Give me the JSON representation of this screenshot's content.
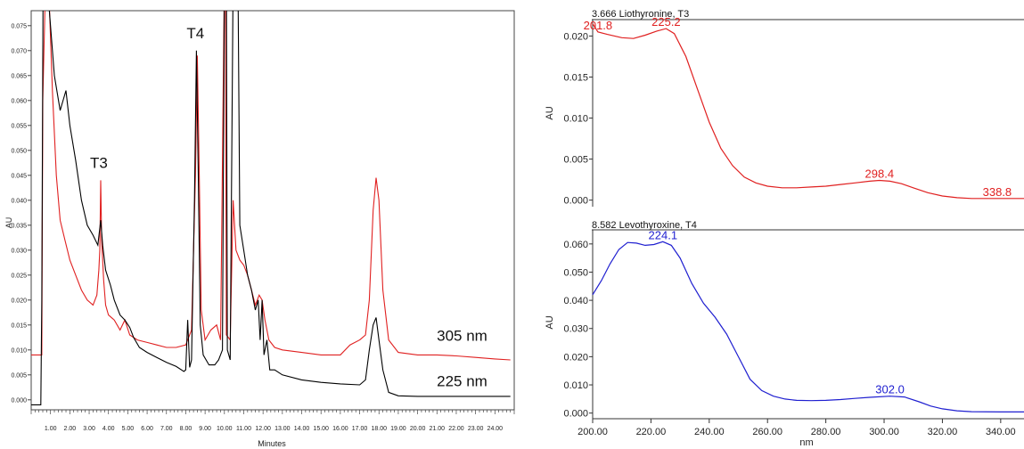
{
  "chart_data": [
    {
      "type": "line",
      "id": "chromatogram",
      "xlabel": "Minutes",
      "ylabel": "AU",
      "xlim": [
        0,
        25
      ],
      "ylim": [
        -0.002,
        0.078
      ],
      "x_ticks": [
        1.0,
        2.0,
        3.0,
        4.0,
        5.0,
        6.0,
        7.0,
        8.0,
        9.0,
        10.0,
        11.0,
        12.0,
        13.0,
        14.0,
        15.0,
        16.0,
        17.0,
        18.0,
        19.0,
        20.0,
        21.0,
        22.0,
        23.0,
        24.0
      ],
      "x_tick_labels": [
        "1.00",
        "2.00",
        "3.00",
        "4.00",
        "5.00",
        "6.00",
        "7.00",
        "8.00",
        "9.00",
        "10.00",
        "11.00",
        "12.00",
        "13.00",
        "14.00",
        "15.00",
        "16.00",
        "17.00",
        "18.00",
        "19.00",
        "20.00",
        "21.00",
        "22.00",
        "23.00",
        "24.00"
      ],
      "y_ticks": [
        0.0,
        0.005,
        0.01,
        0.015,
        0.02,
        0.025,
        0.03,
        0.035,
        0.04,
        0.045,
        0.05,
        0.055,
        0.06,
        0.065,
        0.07,
        0.075
      ],
      "y_tick_labels": [
        "0.000",
        "0.005",
        "0.010",
        "0.015",
        "0.020",
        "0.025",
        "0.030",
        "0.035",
        "0.040",
        "0.045",
        "0.050",
        "0.055",
        "0.060",
        "0.065",
        "0.070",
        "0.075"
      ],
      "series": [
        {
          "name": "225 nm",
          "color": "#000000",
          "points": [
            [
              0.0,
              -0.001
            ],
            [
              0.5,
              -0.001
            ],
            [
              0.55,
              0.02
            ],
            [
              0.62,
              0.085
            ],
            [
              0.85,
              0.085
            ],
            [
              0.9,
              0.08
            ],
            [
              1.2,
              0.065
            ],
            [
              1.5,
              0.058
            ],
            [
              1.8,
              0.062
            ],
            [
              2.0,
              0.055
            ],
            [
              2.3,
              0.048
            ],
            [
              2.6,
              0.04
            ],
            [
              2.9,
              0.035
            ],
            [
              3.2,
              0.033
            ],
            [
              3.45,
              0.031
            ],
            [
              3.6,
              0.036
            ],
            [
              3.7,
              0.031
            ],
            [
              3.85,
              0.026
            ],
            [
              4.1,
              0.023
            ],
            [
              4.3,
              0.02
            ],
            [
              4.6,
              0.017
            ],
            [
              4.85,
              0.016
            ],
            [
              5.1,
              0.0145
            ],
            [
              5.3,
              0.0125
            ],
            [
              5.6,
              0.0105
            ],
            [
              6.0,
              0.0095
            ],
            [
              6.5,
              0.0085
            ],
            [
              7.0,
              0.0075
            ],
            [
              7.5,
              0.0067
            ],
            [
              7.9,
              0.0057
            ],
            [
              8.0,
              0.006
            ],
            [
              8.1,
              0.016
            ],
            [
              8.2,
              0.0065
            ],
            [
              8.3,
              0.008
            ],
            [
              8.45,
              0.04
            ],
            [
              8.55,
              0.07
            ],
            [
              8.65,
              0.045
            ],
            [
              8.75,
              0.015
            ],
            [
              8.9,
              0.009
            ],
            [
              9.2,
              0.007
            ],
            [
              9.5,
              0.007
            ],
            [
              9.7,
              0.008
            ],
            [
              9.9,
              0.01
            ],
            [
              10.0,
              0.085
            ],
            [
              10.1,
              0.085
            ],
            [
              10.15,
              0.01
            ],
            [
              10.3,
              0.008
            ],
            [
              10.45,
              0.085
            ],
            [
              10.7,
              0.085
            ],
            [
              10.8,
              0.035
            ],
            [
              11.0,
              0.03
            ],
            [
              11.2,
              0.025
            ],
            [
              11.4,
              0.022
            ],
            [
              11.6,
              0.018
            ],
            [
              11.75,
              0.02
            ],
            [
              11.85,
              0.012
            ],
            [
              11.95,
              0.02
            ],
            [
              12.05,
              0.009
            ],
            [
              12.2,
              0.012
            ],
            [
              12.35,
              0.006
            ],
            [
              12.6,
              0.006
            ],
            [
              13.0,
              0.005
            ],
            [
              14.0,
              0.004
            ],
            [
              15.0,
              0.0035
            ],
            [
              16.0,
              0.0032
            ],
            [
              17.0,
              0.003
            ],
            [
              17.3,
              0.004
            ],
            [
              17.5,
              0.01
            ],
            [
              17.7,
              0.015
            ],
            [
              17.85,
              0.0165
            ],
            [
              18.0,
              0.012
            ],
            [
              18.2,
              0.006
            ],
            [
              18.5,
              0.0015
            ],
            [
              19.0,
              0.0008
            ],
            [
              20.0,
              0.0007
            ],
            [
              21.0,
              0.0007
            ],
            [
              22.0,
              0.0007
            ],
            [
              23.0,
              0.0007
            ],
            [
              24.0,
              0.0007
            ],
            [
              24.8,
              0.0007
            ]
          ]
        },
        {
          "name": "305 nm",
          "color": "#e02020",
          "points": [
            [
              0.0,
              0.009
            ],
            [
              0.55,
              0.009
            ],
            [
              0.6,
              0.06
            ],
            [
              0.75,
              0.085
            ],
            [
              0.95,
              0.078
            ],
            [
              1.1,
              0.062
            ],
            [
              1.3,
              0.045
            ],
            [
              1.5,
              0.036
            ],
            [
              1.75,
              0.032
            ],
            [
              2.0,
              0.028
            ],
            [
              2.3,
              0.025
            ],
            [
              2.6,
              0.022
            ],
            [
              2.9,
              0.02
            ],
            [
              3.2,
              0.019
            ],
            [
              3.4,
              0.021
            ],
            [
              3.5,
              0.026
            ],
            [
              3.55,
              0.03
            ],
            [
              3.6,
              0.044
            ],
            [
              3.65,
              0.032
            ],
            [
              3.75,
              0.024
            ],
            [
              3.85,
              0.019
            ],
            [
              4.0,
              0.017
            ],
            [
              4.3,
              0.016
            ],
            [
              4.6,
              0.014
            ],
            [
              4.85,
              0.016
            ],
            [
              5.1,
              0.013
            ],
            [
              5.5,
              0.012
            ],
            [
              6.0,
              0.0115
            ],
            [
              6.5,
              0.011
            ],
            [
              7.0,
              0.0105
            ],
            [
              7.5,
              0.0105
            ],
            [
              8.0,
              0.011
            ],
            [
              8.3,
              0.014
            ],
            [
              8.5,
              0.045
            ],
            [
              8.6,
              0.069
            ],
            [
              8.7,
              0.045
            ],
            [
              8.8,
              0.018
            ],
            [
              9.0,
              0.012
            ],
            [
              9.3,
              0.014
            ],
            [
              9.6,
              0.015
            ],
            [
              9.8,
              0.012
            ],
            [
              10.0,
              0.085
            ],
            [
              10.05,
              0.085
            ],
            [
              10.1,
              0.013
            ],
            [
              10.3,
              0.012
            ],
            [
              10.45,
              0.04
            ],
            [
              10.6,
              0.03
            ],
            [
              10.8,
              0.028
            ],
            [
              11.0,
              0.027
            ],
            [
              11.2,
              0.025
            ],
            [
              11.4,
              0.022
            ],
            [
              11.6,
              0.019
            ],
            [
              11.8,
              0.021
            ],
            [
              11.95,
              0.02
            ],
            [
              12.1,
              0.016
            ],
            [
              12.3,
              0.012
            ],
            [
              12.6,
              0.0105
            ],
            [
              13.0,
              0.01
            ],
            [
              14.0,
              0.0095
            ],
            [
              15.0,
              0.009
            ],
            [
              16.0,
              0.009
            ],
            [
              16.5,
              0.011
            ],
            [
              17.0,
              0.012
            ],
            [
              17.3,
              0.013
            ],
            [
              17.5,
              0.02
            ],
            [
              17.7,
              0.038
            ],
            [
              17.85,
              0.0445
            ],
            [
              18.0,
              0.04
            ],
            [
              18.2,
              0.022
            ],
            [
              18.5,
              0.012
            ],
            [
              19.0,
              0.0095
            ],
            [
              20.0,
              0.009
            ],
            [
              21.0,
              0.009
            ],
            [
              22.0,
              0.0088
            ],
            [
              23.0,
              0.0085
            ],
            [
              24.0,
              0.0082
            ],
            [
              24.8,
              0.008
            ]
          ]
        }
      ],
      "annotations": [
        {
          "text": "T3",
          "x": 3.5,
          "y": 0.0465
        },
        {
          "text": "T4",
          "x": 8.5,
          "y": 0.0725
        },
        {
          "text": "305 nm",
          "x": 22.3,
          "y": 0.0118
        },
        {
          "text": "225 nm",
          "x": 22.3,
          "y": 0.0027
        }
      ]
    },
    {
      "type": "line",
      "id": "spectrum_t3",
      "title": "3.666 Liothyronine, T3",
      "xlabel": "",
      "ylabel": "AU",
      "xlim": [
        200,
        348
      ],
      "ylim": [
        -0.0008,
        0.022
      ],
      "y_ticks": [
        0.0,
        0.005,
        0.01,
        0.015,
        0.02
      ],
      "y_tick_labels": [
        "0.000",
        "0.005",
        "0.010",
        "0.015",
        "0.020"
      ],
      "series": [
        {
          "name": "",
          "color": "#e02020",
          "points": [
            [
              200,
              0.0215
            ],
            [
              201.8,
              0.0205
            ],
            [
              205,
              0.0202
            ],
            [
              210,
              0.0198
            ],
            [
              214,
              0.0197
            ],
            [
              218,
              0.0201
            ],
            [
              222,
              0.0206
            ],
            [
              225.2,
              0.0209
            ],
            [
              228,
              0.0203
            ],
            [
              232,
              0.0175
            ],
            [
              236,
              0.0135
            ],
            [
              240,
              0.0095
            ],
            [
              244,
              0.0063
            ],
            [
              248,
              0.0042
            ],
            [
              252,
              0.0028
            ],
            [
              256,
              0.0021
            ],
            [
              260,
              0.0017
            ],
            [
              265,
              0.0015
            ],
            [
              270,
              0.0015
            ],
            [
              275,
              0.0016
            ],
            [
              280,
              0.0017
            ],
            [
              285,
              0.0019
            ],
            [
              290,
              0.0021
            ],
            [
              295,
              0.0023
            ],
            [
              298.4,
              0.0024
            ],
            [
              302,
              0.0023
            ],
            [
              306,
              0.002
            ],
            [
              310,
              0.0015
            ],
            [
              315,
              0.0009
            ],
            [
              320,
              0.0005
            ],
            [
              325,
              0.0003
            ],
            [
              330,
              0.0002
            ],
            [
              338.8,
              0.0002
            ],
            [
              348,
              0.0002
            ]
          ]
        }
      ],
      "annotations": [
        {
          "text": "201.8",
          "x": 201.8,
          "y": 0.0205
        },
        {
          "text": "225.2",
          "x": 225.2,
          "y": 0.0209
        },
        {
          "text": "298.4",
          "x": 298.4,
          "y": 0.0024
        },
        {
          "text": "338.8",
          "x": 338.8,
          "y": 0.0002
        }
      ]
    },
    {
      "type": "line",
      "id": "spectrum_t4",
      "title": "8.582 Levothyroxine, T4",
      "xlabel": "nm",
      "ylabel": "AU",
      "xlim": [
        200,
        348
      ],
      "ylim": [
        -0.002,
        0.065
      ],
      "x_ticks": [
        200,
        220,
        240,
        260,
        280,
        300,
        320,
        340
      ],
      "x_tick_labels": [
        "200.00",
        "220.00",
        "240.00",
        "260.00",
        "280.00",
        "300.00",
        "320.00",
        "340.00"
      ],
      "y_ticks": [
        0.0,
        0.01,
        0.02,
        0.03,
        0.04,
        0.05,
        0.06
      ],
      "y_tick_labels": [
        "0.000",
        "0.010",
        "0.020",
        "0.030",
        "0.040",
        "0.050",
        "0.060"
      ],
      "series": [
        {
          "name": "",
          "color": "#1f1fd0",
          "points": [
            [
              200,
              0.042
            ],
            [
              203,
              0.047
            ],
            [
              206,
              0.053
            ],
            [
              209,
              0.058
            ],
            [
              212,
              0.0605
            ],
            [
              215,
              0.0603
            ],
            [
              218,
              0.0595
            ],
            [
              221,
              0.0598
            ],
            [
              224.1,
              0.0608
            ],
            [
              227,
              0.0595
            ],
            [
              230,
              0.055
            ],
            [
              234,
              0.046
            ],
            [
              238,
              0.039
            ],
            [
              242,
              0.034
            ],
            [
              246,
              0.028
            ],
            [
              250,
              0.02
            ],
            [
              254,
              0.012
            ],
            [
              258,
              0.008
            ],
            [
              262,
              0.006
            ],
            [
              266,
              0.005
            ],
            [
              270,
              0.0045
            ],
            [
              275,
              0.0044
            ],
            [
              280,
              0.0045
            ],
            [
              285,
              0.0048
            ],
            [
              290,
              0.0052
            ],
            [
              295,
              0.0056
            ],
            [
              302,
              0.006
            ],
            [
              307,
              0.0057
            ],
            [
              312,
              0.004
            ],
            [
              316,
              0.0025
            ],
            [
              320,
              0.0015
            ],
            [
              325,
              0.0008
            ],
            [
              330,
              0.0005
            ],
            [
              340,
              0.0004
            ],
            [
              348,
              0.0004
            ]
          ]
        }
      ],
      "annotations": [
        {
          "text": "224.1",
          "x": 224.1,
          "y": 0.0608
        },
        {
          "text": "302.0",
          "x": 302.0,
          "y": 0.006
        }
      ]
    }
  ]
}
